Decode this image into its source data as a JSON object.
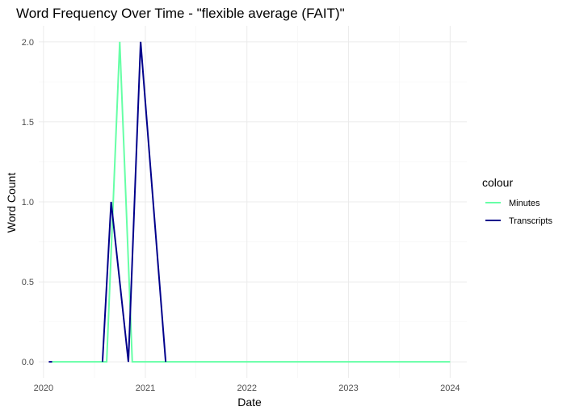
{
  "chart_data": {
    "type": "line",
    "title": "Word Frequency Over Time - \"flexible average (FAIT)\"",
    "xlabel": "Date",
    "ylabel": "Word Count",
    "x_tick_labels": [
      "2020",
      "2021",
      "2022",
      "2023",
      "2024"
    ],
    "y_tick_labels": [
      "0.0",
      "0.5",
      "1.0",
      "1.5",
      "2.0"
    ],
    "y_ticks": [
      0,
      0.5,
      1,
      1.5,
      2
    ],
    "xlim": [
      "2019-12-15",
      "2024-03-01"
    ],
    "ylim": [
      -0.1,
      2.1
    ],
    "grid": true,
    "legend_position": "right",
    "legend_title": "colour",
    "series": [
      {
        "name": "Minutes",
        "color": "#66ffa6",
        "points": [
          {
            "x": "2020-02-01",
            "y": 0
          },
          {
            "x": "2020-08-15",
            "y": 0
          },
          {
            "x": "2020-10-01",
            "y": 2
          },
          {
            "x": "2020-11-15",
            "y": 0
          },
          {
            "x": "2024-01-01",
            "y": 0
          }
        ]
      },
      {
        "name": "Transcripts",
        "color": "#00008b",
        "points": [
          {
            "x": "2020-01-20",
            "y": 0
          },
          {
            "x": "2020-02-01",
            "y": 0
          },
          {
            "x": "2020-02-01",
            "y": null
          },
          {
            "x": "2020-07-31",
            "y": 0
          },
          {
            "x": "2020-08-31",
            "y": 1
          },
          {
            "x": "2020-11-01",
            "y": 0
          },
          {
            "x": "2020-12-15",
            "y": 2
          },
          {
            "x": "2021-03-15",
            "y": 0
          }
        ]
      }
    ]
  }
}
